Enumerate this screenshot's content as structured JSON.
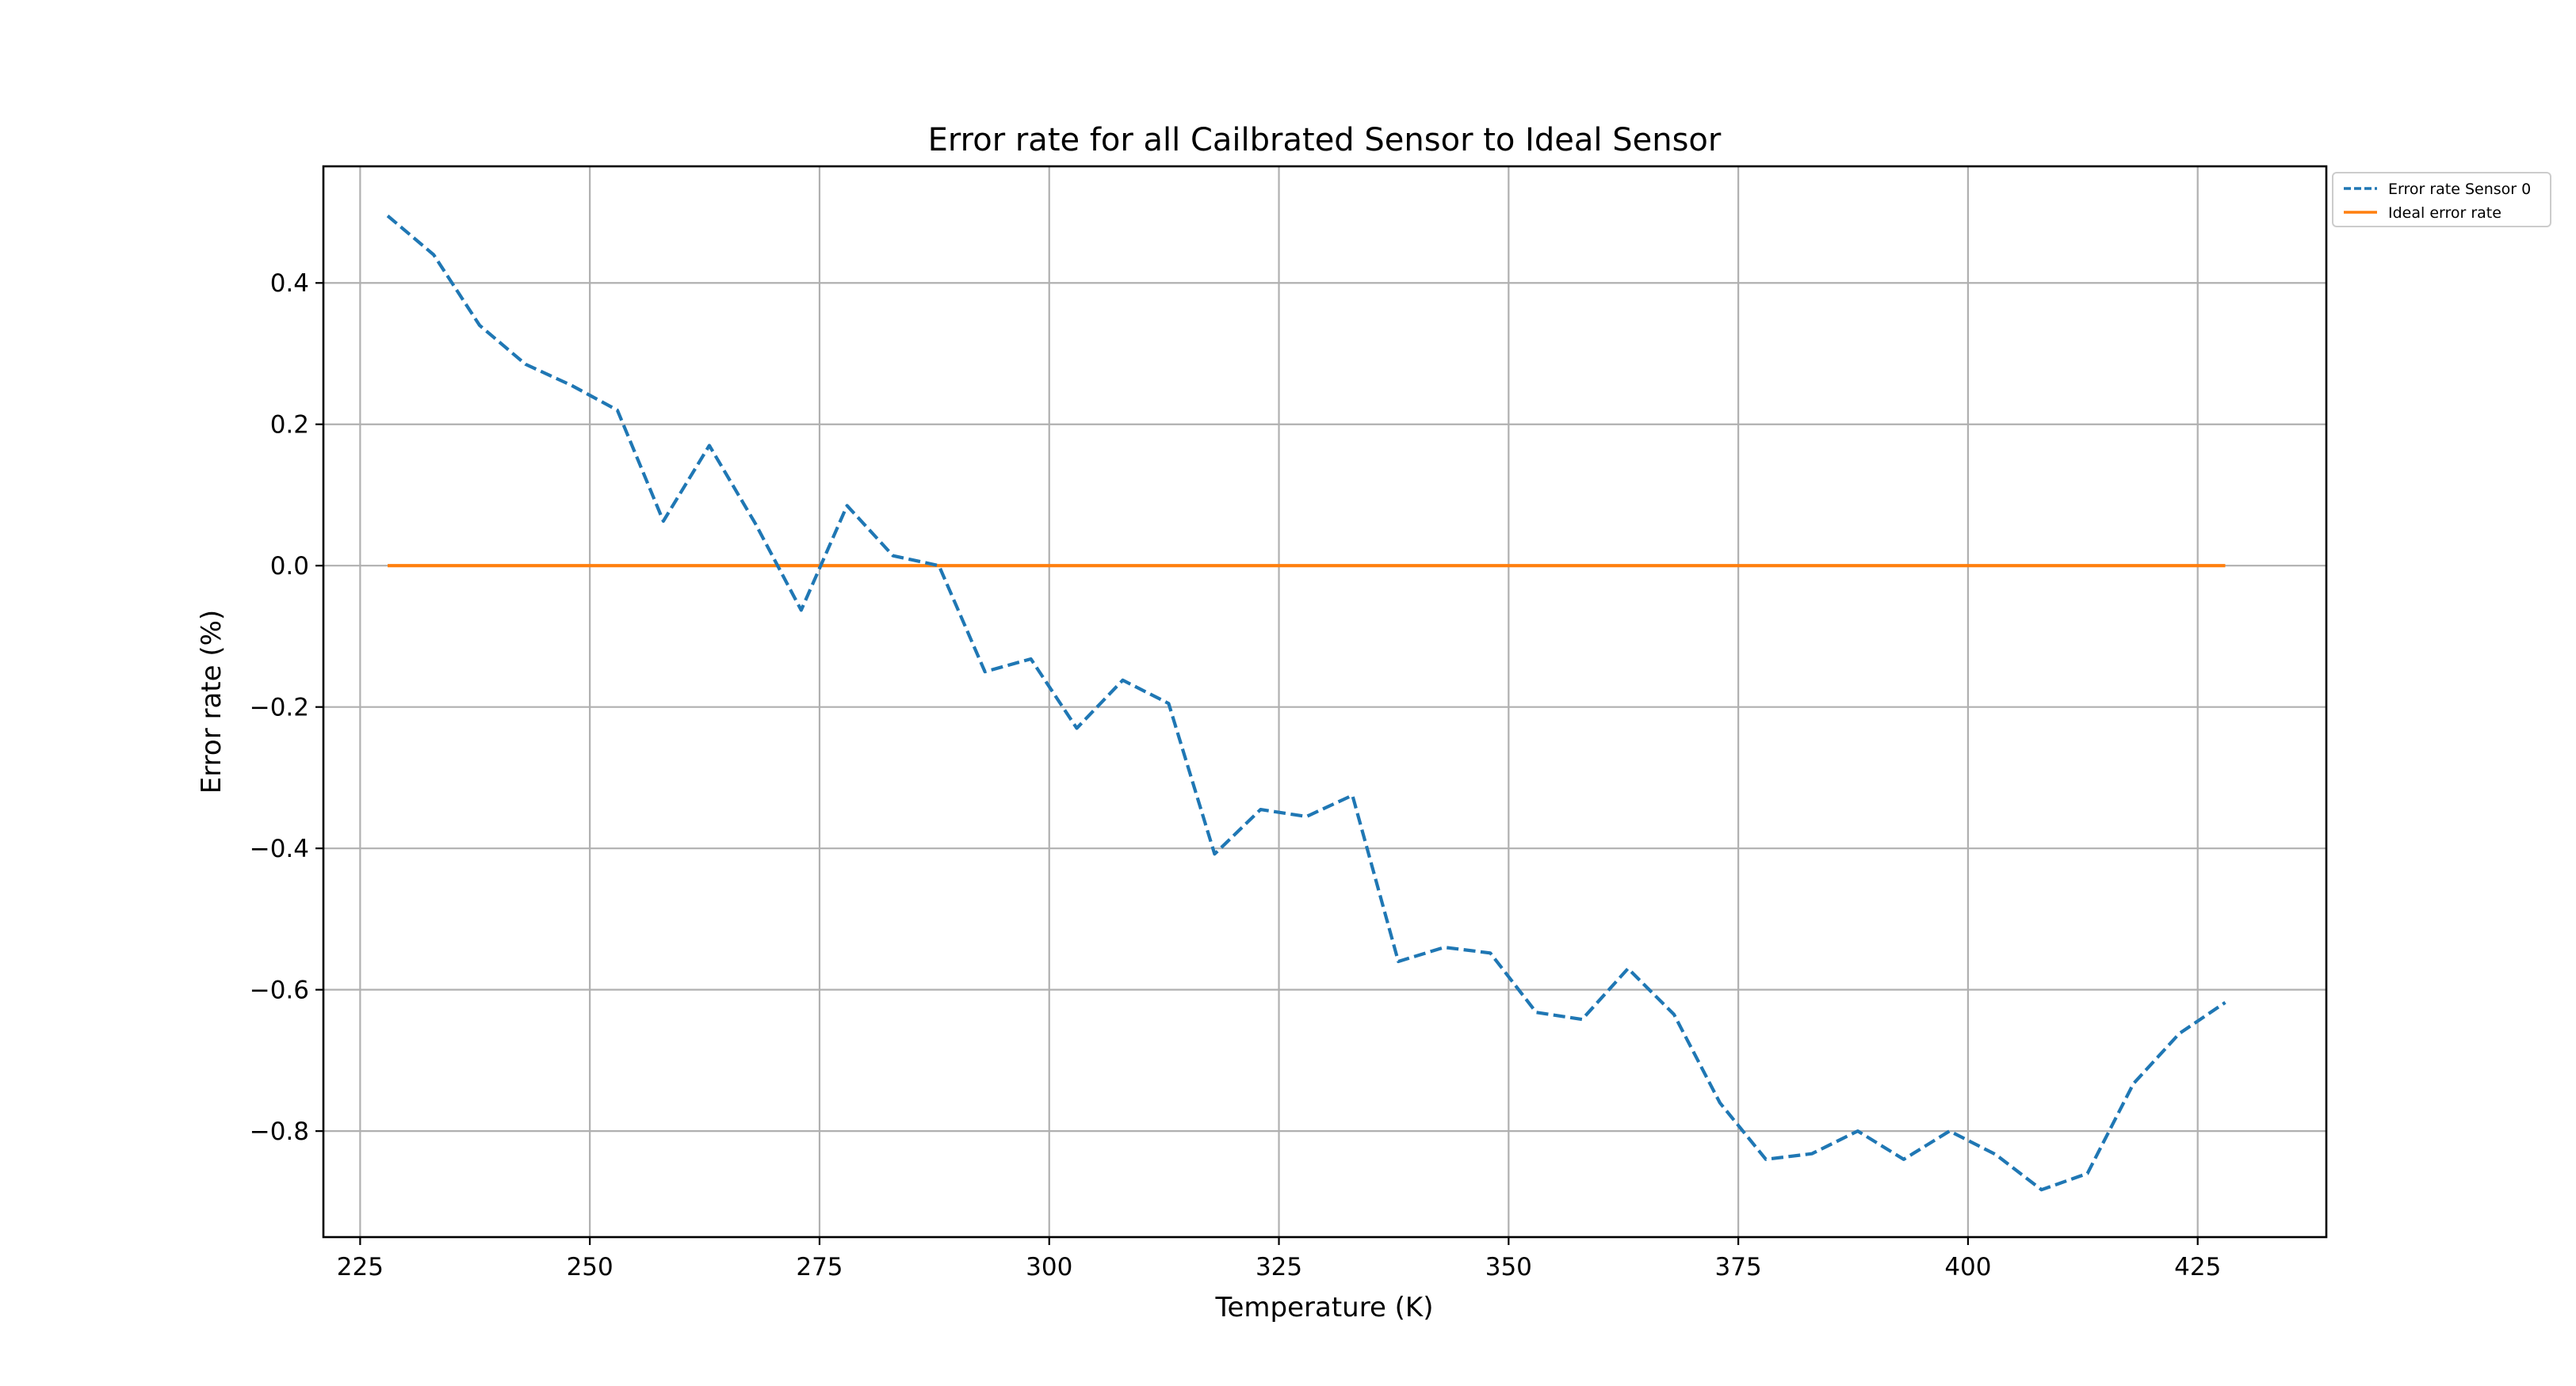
{
  "chart_data": {
    "type": "line",
    "title": "Error rate for all Cailbrated Sensor to Ideal Sensor",
    "xlabel": "Temperature (K)",
    "ylabel": "Error rate (%)",
    "xlim": [
      221,
      439
    ],
    "ylim": [
      -0.95,
      0.565
    ],
    "x_ticks": [
      225,
      250,
      275,
      300,
      325,
      350,
      375,
      400,
      425
    ],
    "y_ticks": [
      -0.8,
      -0.6,
      -0.4,
      -0.2,
      0.0,
      0.2,
      0.4
    ],
    "y_tick_labels": [
      "−0.8",
      "−0.6",
      "−0.4",
      "−0.2",
      "0.0",
      "0.2",
      "0.4"
    ],
    "x_tick_labels": [
      "225",
      "250",
      "275",
      "300",
      "325",
      "350",
      "375",
      "400",
      "425"
    ],
    "grid": true,
    "legend_position": "outside top-right",
    "x": [
      228,
      233,
      238,
      243,
      248,
      253,
      258,
      263,
      268,
      273,
      278,
      283,
      288,
      293,
      298,
      303,
      308,
      313,
      318,
      323,
      328,
      333,
      338,
      343,
      348,
      353,
      358,
      363,
      368,
      373,
      378,
      383,
      388,
      393,
      398,
      403,
      408,
      413,
      418,
      423,
      428
    ],
    "series": [
      {
        "name": "Error rate Sensor 0",
        "color": "#1f77b4",
        "style": "dashed",
        "values": [
          0.495,
          0.44,
          0.34,
          0.285,
          0.255,
          0.22,
          0.063,
          0.17,
          0.06,
          -0.063,
          0.085,
          0.014,
          0.0,
          -0.15,
          -0.132,
          -0.23,
          -0.162,
          -0.195,
          -0.408,
          -0.345,
          -0.355,
          -0.325,
          -0.56,
          -0.54,
          -0.548,
          -0.632,
          -0.642,
          -0.57,
          -0.635,
          -0.76,
          -0.84,
          -0.832,
          -0.8,
          -0.84,
          -0.8,
          -0.833,
          -0.883,
          -0.86,
          -0.733,
          -0.662,
          -0.618
        ]
      },
      {
        "name": "Ideal error rate",
        "color": "#ff7f0e",
        "style": "solid",
        "values": [
          0,
          0,
          0,
          0,
          0,
          0,
          0,
          0,
          0,
          0,
          0,
          0,
          0,
          0,
          0,
          0,
          0,
          0,
          0,
          0,
          0,
          0,
          0,
          0,
          0,
          0,
          0,
          0,
          0,
          0,
          0,
          0,
          0,
          0,
          0,
          0,
          0,
          0,
          0,
          0,
          0
        ]
      }
    ]
  }
}
